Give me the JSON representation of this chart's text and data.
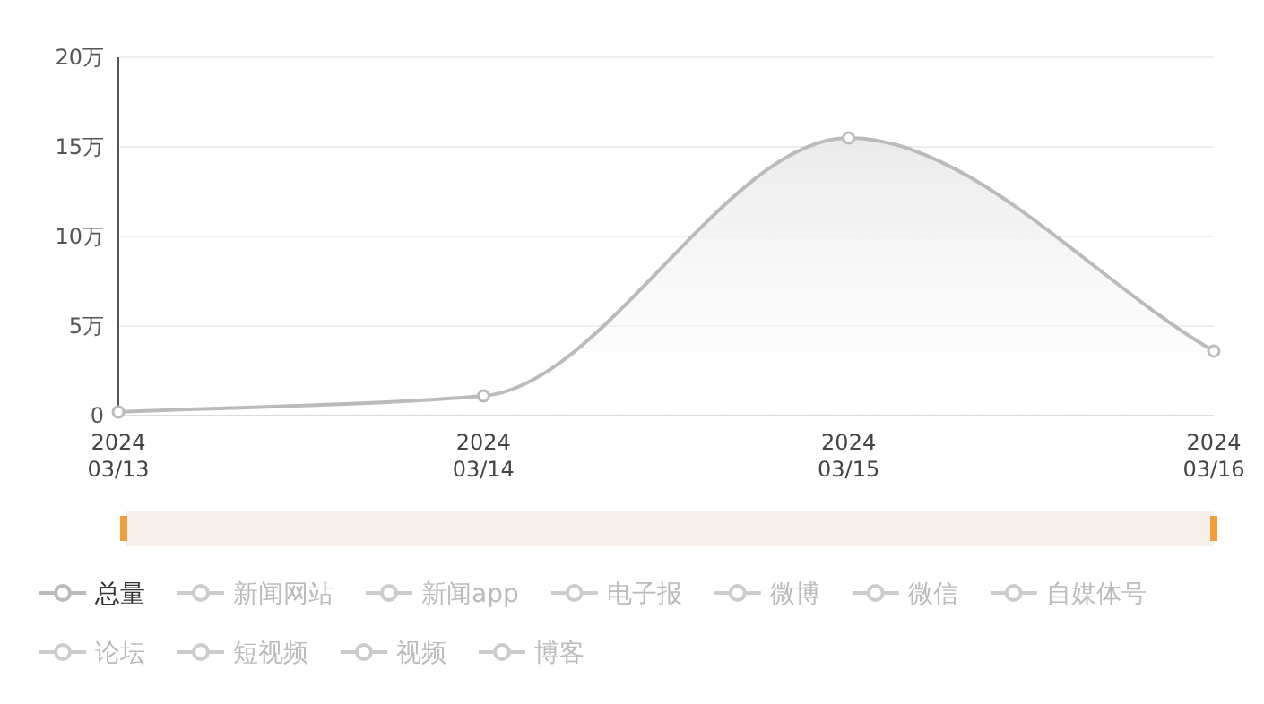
{
  "chart_data": {
    "type": "area",
    "categories": [
      "2024\n03/13",
      "2024\n03/14",
      "2024\n03/15",
      "2024\n03/16"
    ],
    "series": [
      {
        "name": "总量",
        "color": "#bbbbbb",
        "values": [
          0.2,
          1.1,
          15.5,
          3.6
        ]
      },
      {
        "name": "新闻网站",
        "color": "#cccccc",
        "values": [
          null,
          null,
          null,
          null
        ]
      },
      {
        "name": "新闻app",
        "color": "#cccccc",
        "values": [
          null,
          null,
          null,
          null
        ]
      },
      {
        "name": "电子报",
        "color": "#cccccc",
        "values": [
          null,
          null,
          null,
          null
        ]
      },
      {
        "name": "微博",
        "color": "#cccccc",
        "values": [
          null,
          null,
          null,
          null
        ]
      },
      {
        "name": "微信",
        "color": "#cccccc",
        "values": [
          null,
          null,
          null,
          null
        ]
      },
      {
        "name": "自媒体号",
        "color": "#cccccc",
        "values": [
          null,
          null,
          null,
          null
        ]
      },
      {
        "name": "论坛",
        "color": "#cccccc",
        "values": [
          null,
          null,
          null,
          null
        ]
      },
      {
        "name": "短视频",
        "color": "#cccccc",
        "values": [
          null,
          null,
          null,
          null
        ]
      },
      {
        "name": "视频",
        "color": "#cccccc",
        "values": [
          null,
          null,
          null,
          null
        ]
      },
      {
        "name": "博客",
        "color": "#cccccc",
        "values": [
          null,
          null,
          null,
          null
        ]
      }
    ],
    "ylim": [
      0,
      20
    ],
    "yticks": [
      {
        "value": 0,
        "label": "0"
      },
      {
        "value": 5,
        "label": "5万"
      },
      {
        "value": 10,
        "label": "10万"
      },
      {
        "value": 15,
        "label": "15万"
      },
      {
        "value": 20,
        "label": "20万"
      }
    ],
    "grid": "y",
    "legend": "bottom",
    "marker": "circle",
    "line_style": "solid"
  }
}
